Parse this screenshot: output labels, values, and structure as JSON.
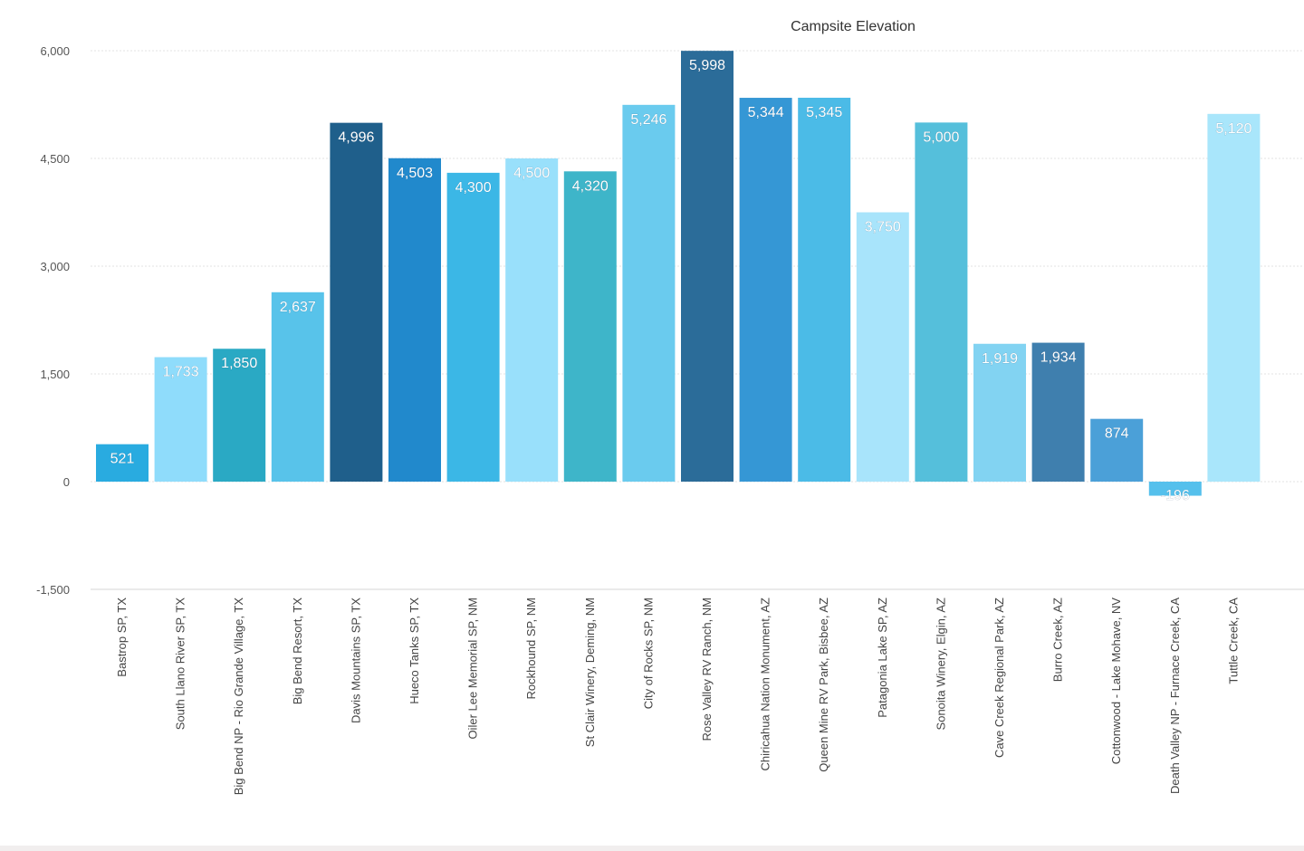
{
  "chart_data": {
    "type": "bar",
    "title": "Campsite Elevation",
    "xlabel": "",
    "ylabel": "",
    "ylim": [
      -1500,
      6000
    ],
    "yticks": [
      -1500,
      0,
      1500,
      3000,
      4500,
      6000
    ],
    "ytick_labels": [
      "-1,500",
      "0",
      "1,500",
      "3,000",
      "4,500",
      "6,000"
    ],
    "grid": true,
    "legend": "none",
    "categories": [
      "Bastrop SP, TX",
      "South Llano River SP, TX",
      "Big Bend NP - Rio Grande Village, TX",
      "Big Bend Resort, TX",
      "Davis Mountains SP, TX",
      "Hueco Tanks SP, TX",
      "Oiler Lee Memorial SP, NM",
      "Rockhound SP, NM",
      "St Clair Winery, Deming, NM",
      "City of Rocks SP, NM",
      "Rose Valley RV Ranch, NM",
      "Chiricahua Nation Monument, AZ",
      "Queen Mine RV Park, Bisbee, AZ",
      "Patagonia Lake SP, AZ",
      "Sonoita Winery, Elgin, AZ",
      "Cave Creek Regional Park, AZ",
      "Burro Creek, AZ",
      "Cottonwood - Lake Mohave, NV",
      "Death Valley NP - Furnace Creek, CA",
      "Tuttle Creek, CA"
    ],
    "values": [
      521,
      1733,
      1850,
      2637,
      4996,
      4503,
      4300,
      4500,
      4320,
      5246,
      5998,
      5344,
      5345,
      3750,
      5000,
      1919,
      1934,
      874,
      -196,
      5120
    ],
    "value_labels": [
      "521",
      "1,733",
      "1,850",
      "2,637",
      "4,996",
      "4,503",
      "4,300",
      "4,500",
      "4,320",
      "5,246",
      "5,998",
      "5,344",
      "5,345",
      "3,750",
      "5,000",
      "1,919",
      "1,934",
      "874",
      "-196",
      "5,120"
    ],
    "colors": [
      "#29abe0",
      "#8fdcfb",
      "#2aa9c4",
      "#58c3ea",
      "#1f5f8b",
      "#2189cc",
      "#3bb7e6",
      "#99e0fb",
      "#3eb5c9",
      "#6acbee",
      "#2b6c99",
      "#3597d5",
      "#4bbbe7",
      "#a8e4fb",
      "#55bfdb",
      "#82d3f2",
      "#3f7fae",
      "#4ba0d8",
      "#55c0ec",
      "#a9e6fb"
    ]
  }
}
